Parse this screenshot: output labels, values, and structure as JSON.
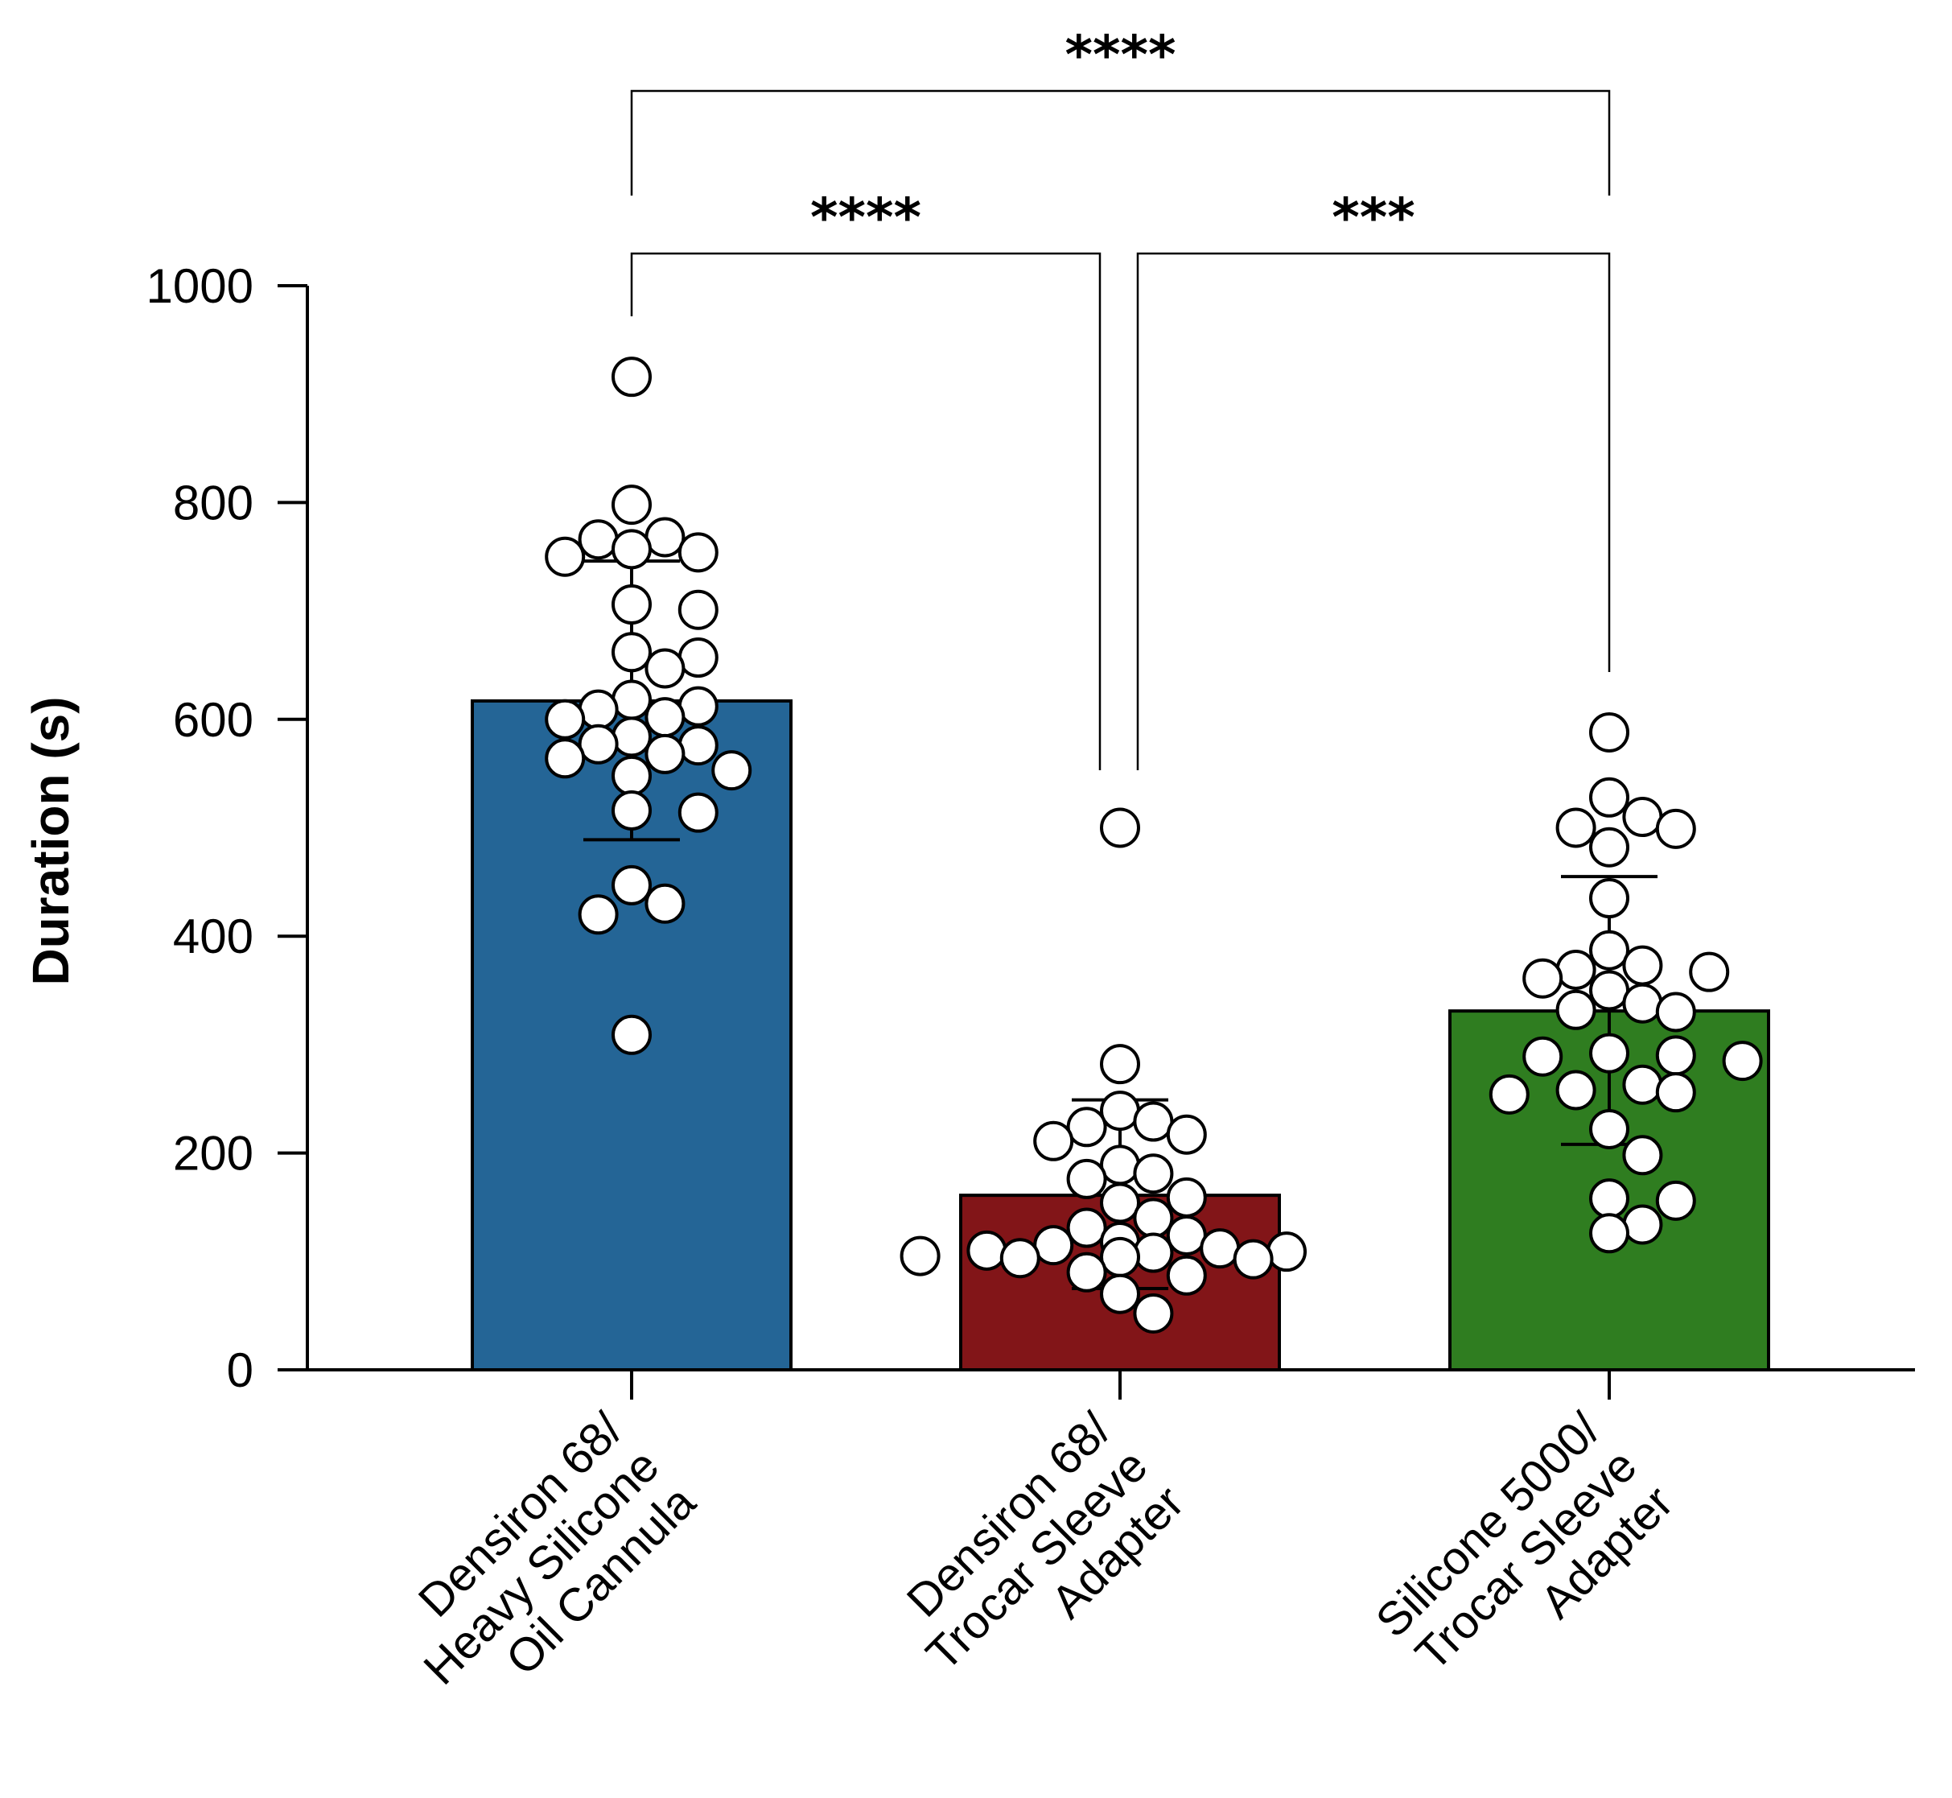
{
  "chart_data": {
    "type": "bar",
    "title": "",
    "xlabel": "",
    "ylabel": "Duration (s)",
    "ylim": [
      0,
      1000
    ],
    "yticks": [
      0,
      200,
      400,
      600,
      800,
      1000
    ],
    "grid": false,
    "categories": [
      {
        "lines": [
          "Densiron 68/",
          "Heavy Silicone",
          "Oil Cannula"
        ]
      },
      {
        "lines": [
          "Densiron 68/",
          "Trocar Sleeve",
          "Adapter"
        ]
      },
      {
        "lines": [
          "Silicone 5000/",
          "Trocar Sleeve",
          "Adapter"
        ]
      }
    ],
    "values": [
      617,
      161,
      331
    ],
    "error": [
      [
        489,
        746
      ],
      [
        75,
        249
      ],
      [
        208,
        455
      ]
    ],
    "colors": [
      "#246596",
      "#821518",
      "#2f7d20"
    ],
    "points": [
      [
        916,
        798,
        766,
        768,
        754,
        750,
        757,
        706,
        701,
        662,
        657,
        647,
        618,
        612,
        609,
        602,
        600,
        584,
        577,
        576,
        568,
        564,
        553,
        548,
        514,
        516,
        447,
        430,
        420,
        309
      ],
      [
        500,
        282,
        239,
        229,
        224,
        217,
        211,
        189,
        181,
        176,
        159,
        154,
        140,
        131,
        124,
        118,
        115,
        112,
        110,
        109,
        108,
        105,
        104,
        103,
        102,
        90,
        87,
        70,
        52
      ],
      [
        588,
        528,
        510,
        500,
        499,
        482,
        435,
        387,
        373,
        369,
        367,
        361,
        350,
        338,
        332,
        330,
        292,
        290,
        289,
        285,
        263,
        258,
        256,
        254,
        222,
        198,
        158,
        156,
        134,
        126
      ]
    ],
    "comparisons": [
      {
        "from": 0,
        "to": 2,
        "label": "****"
      },
      {
        "from": 0,
        "to": 1,
        "label": "****"
      },
      {
        "from": 1,
        "to": 2,
        "label": "***"
      }
    ]
  }
}
